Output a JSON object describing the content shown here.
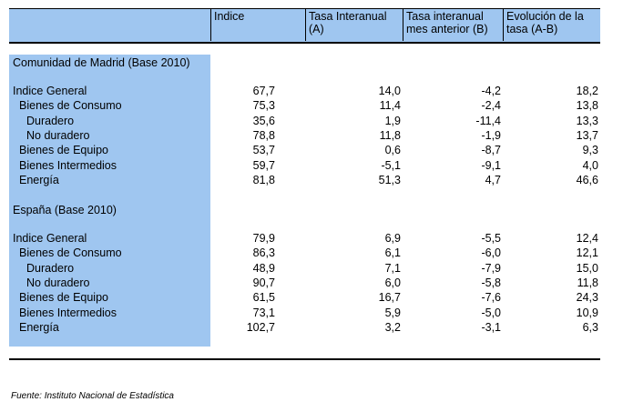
{
  "headers": {
    "col0": "",
    "col1": "Indice",
    "col2": "Tasa Interanual (A)",
    "col3": "Tasa interanual mes anterior (B)",
    "col4": "Evolución de la tasa (A-B)"
  },
  "madrid": {
    "title": "Comunidad de Madrid (Base 2010)",
    "rows": [
      {
        "label": "Indice General",
        "indice": "67,7",
        "tasa": "14,0",
        "tasa_ant": "-4,2",
        "evol": "18,2"
      },
      {
        "label": "Bienes de Consumo",
        "indice": "75,3",
        "tasa": "11,4",
        "tasa_ant": "-2,4",
        "evol": "13,8"
      },
      {
        "label": "Duradero",
        "indice": "35,6",
        "tasa": "1,9",
        "tasa_ant": "-11,4",
        "evol": "13,3"
      },
      {
        "label": "No duradero",
        "indice": "78,8",
        "tasa": "11,8",
        "tasa_ant": "-1,9",
        "evol": "13,7"
      },
      {
        "label": "Bienes de Equipo",
        "indice": "53,7",
        "tasa": "0,6",
        "tasa_ant": "-8,7",
        "evol": "9,3"
      },
      {
        "label": "Bienes Intermedios",
        "indice": "59,7",
        "tasa": "-5,1",
        "tasa_ant": "-9,1",
        "evol": "4,0"
      },
      {
        "label": "Energía",
        "indice": "81,8",
        "tasa": "51,3",
        "tasa_ant": "4,7",
        "evol": "46,6"
      }
    ]
  },
  "espana": {
    "title": "España (Base 2010)",
    "rows": [
      {
        "label": "Indice General",
        "indice": "79,9",
        "tasa": "6,9",
        "tasa_ant": "-5,5",
        "evol": "12,4"
      },
      {
        "label": "Bienes de Consumo",
        "indice": "86,3",
        "tasa": "6,1",
        "tasa_ant": "-6,0",
        "evol": "12,1"
      },
      {
        "label": "Duradero",
        "indice": "48,9",
        "tasa": "7,1",
        "tasa_ant": "-7,9",
        "evol": "15,0"
      },
      {
        "label": "No duradero",
        "indice": "90,7",
        "tasa": "6,0",
        "tasa_ant": "-5,8",
        "evol": "11,8"
      },
      {
        "label": "Bienes de Equipo",
        "indice": "61,5",
        "tasa": "16,7",
        "tasa_ant": "-7,6",
        "evol": "24,3"
      },
      {
        "label": "Bienes Intermedios",
        "indice": "73,1",
        "tasa": "5,9",
        "tasa_ant": "-5,0",
        "evol": "10,9"
      },
      {
        "label": "Energía",
        "indice": "102,7",
        "tasa": "3,2",
        "tasa_ant": "-3,1",
        "evol": "6,3"
      }
    ]
  },
  "source": "Fuente: Instituto Nacional de Estadística",
  "colors": {
    "highlight": "#9fc6f0",
    "text": "#000000"
  }
}
